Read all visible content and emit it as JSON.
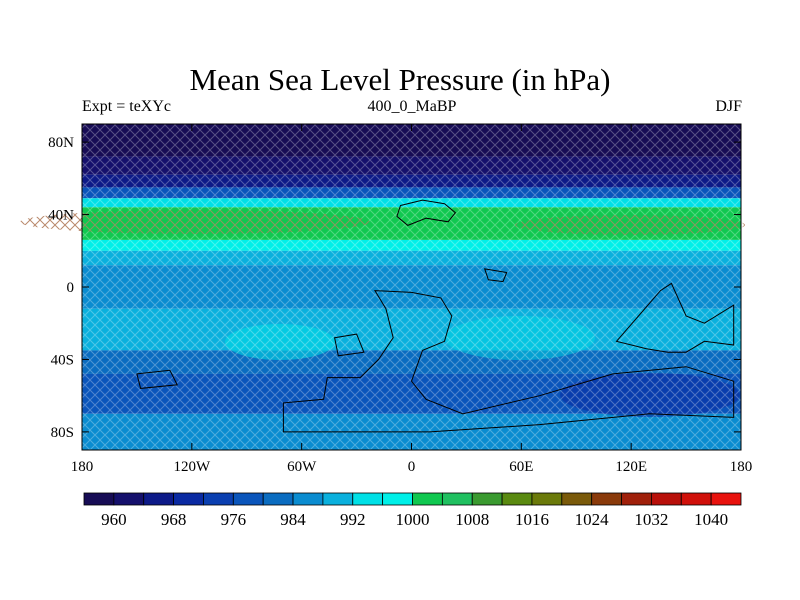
{
  "figure": {
    "title": "Mean Sea Level Pressure (in hPa)",
    "left_subtitle": "Expt = teXYc",
    "center_subtitle": "400_0_MaBP",
    "right_subtitle": "DJF"
  },
  "axes": {
    "lon_range": [
      -180,
      180
    ],
    "lat_range": [
      -90,
      90
    ],
    "x_ticks": [
      {
        "value": -180,
        "label": "180"
      },
      {
        "value": -120,
        "label": "120W"
      },
      {
        "value": -60,
        "label": "60W"
      },
      {
        "value": 0,
        "label": "0"
      },
      {
        "value": 60,
        "label": "60E"
      },
      {
        "value": 120,
        "label": "120E"
      },
      {
        "value": 180,
        "label": "180"
      }
    ],
    "y_ticks": [
      {
        "value": 80,
        "label": "80N"
      },
      {
        "value": 40,
        "label": "40N"
      },
      {
        "value": 0,
        "label": "0"
      },
      {
        "value": -40,
        "label": "40S"
      },
      {
        "value": -80,
        "label": "80S"
      }
    ]
  },
  "colorbar": {
    "levels": [
      960,
      964,
      968,
      972,
      976,
      980,
      984,
      988,
      992,
      996,
      1000,
      1004,
      1008,
      1012,
      1016,
      1020,
      1024,
      1028,
      1032,
      1036,
      1040
    ],
    "labels": [
      "960",
      "968",
      "976",
      "984",
      "992",
      "1000",
      "1008",
      "1016",
      "1024",
      "1032",
      "1040"
    ],
    "colors": [
      "#170c55",
      "#15106c",
      "#0d1a88",
      "#0a2aa2",
      "#0a3fb0",
      "#0a55bb",
      "#0a6cc0",
      "#0a8cd0",
      "#0ab0dd",
      "#00e0e6",
      "#00f0e8",
      "#10c850",
      "#20c060",
      "#3a9a30",
      "#5a8a10",
      "#6b7a0a",
      "#7a5a0a",
      "#8a3a0a",
      "#a0200a",
      "#b8100a",
      "#d0100a",
      "#e8120e"
    ]
  },
  "bands": [
    {
      "lat": [
        72,
        90
      ],
      "color": "#170c55"
    },
    {
      "lat": [
        62,
        72
      ],
      "color": "#15106c"
    },
    {
      "lat": [
        55,
        62
      ],
      "color": "#0d1a88"
    },
    {
      "lat": [
        49,
        55
      ],
      "color": "#0a55bb"
    },
    {
      "lat": [
        44,
        49
      ],
      "color": "#00e0e6"
    },
    {
      "lat": [
        26,
        44
      ],
      "color": "#10c850"
    },
    {
      "lat": [
        20,
        26
      ],
      "color": "#00f0e8"
    },
    {
      "lat": [
        12,
        20
      ],
      "color": "#0ab0dd"
    },
    {
      "lat": [
        -12,
        12
      ],
      "color": "#0a8cd0"
    },
    {
      "lat": [
        -35,
        -12
      ],
      "color": "#0ab0dd"
    },
    {
      "lat": [
        -48,
        -35
      ],
      "color": "#0a6cc0"
    },
    {
      "lat": [
        -70,
        -48
      ],
      "color": "#0a55bb"
    },
    {
      "lat": [
        -90,
        -70
      ],
      "color": "#0a8cd0"
    }
  ],
  "continents": [
    {
      "name": "land-north-40n",
      "points": [
        [
          -6,
          45
        ],
        [
          6,
          48
        ],
        [
          18,
          46
        ],
        [
          24,
          41
        ],
        [
          20,
          36
        ],
        [
          8,
          38
        ],
        [
          -2,
          34
        ],
        [
          -8,
          39
        ]
      ]
    },
    {
      "name": "land-east-small",
      "points": [
        [
          40,
          10
        ],
        [
          52,
          8
        ],
        [
          50,
          3
        ],
        [
          42,
          4
        ]
      ]
    },
    {
      "name": "land-south-central",
      "points": [
        [
          -20,
          -2
        ],
        [
          0,
          -3
        ],
        [
          16,
          -6
        ],
        [
          22,
          -16
        ],
        [
          18,
          -30
        ],
        [
          6,
          -35
        ],
        [
          0,
          -52
        ],
        [
          8,
          -62
        ],
        [
          28,
          -70
        ],
        [
          70,
          -60
        ],
        [
          110,
          -48
        ],
        [
          150,
          -44
        ],
        [
          176,
          -52
        ],
        [
          176,
          -72
        ],
        [
          130,
          -70
        ],
        [
          70,
          -76
        ],
        [
          10,
          -80
        ],
        [
          -70,
          -80
        ],
        [
          -70,
          -64
        ],
        [
          -48,
          -62
        ],
        [
          -46,
          -50
        ],
        [
          -28,
          -50
        ],
        [
          -18,
          -40
        ],
        [
          -10,
          -28
        ],
        [
          -14,
          -12
        ]
      ]
    },
    {
      "name": "land-east-arc",
      "points": [
        [
          112,
          -30
        ],
        [
          124,
          -16
        ],
        [
          136,
          -2
        ],
        [
          142,
          2
        ],
        [
          150,
          -16
        ],
        [
          160,
          -20
        ],
        [
          176,
          -10
        ],
        [
          176,
          -32
        ],
        [
          160,
          -30
        ],
        [
          150,
          -36
        ],
        [
          140,
          -36
        ],
        [
          128,
          -34
        ]
      ]
    },
    {
      "name": "land-west-islands",
      "points": [
        [
          -150,
          -48
        ],
        [
          -132,
          -46
        ],
        [
          -128,
          -54
        ],
        [
          -148,
          -56
        ]
      ]
    },
    {
      "name": "land-southwest-fragment",
      "points": [
        [
          -42,
          -28
        ],
        [
          -30,
          -26
        ],
        [
          -26,
          -36
        ],
        [
          -40,
          -38
        ]
      ]
    }
  ]
}
